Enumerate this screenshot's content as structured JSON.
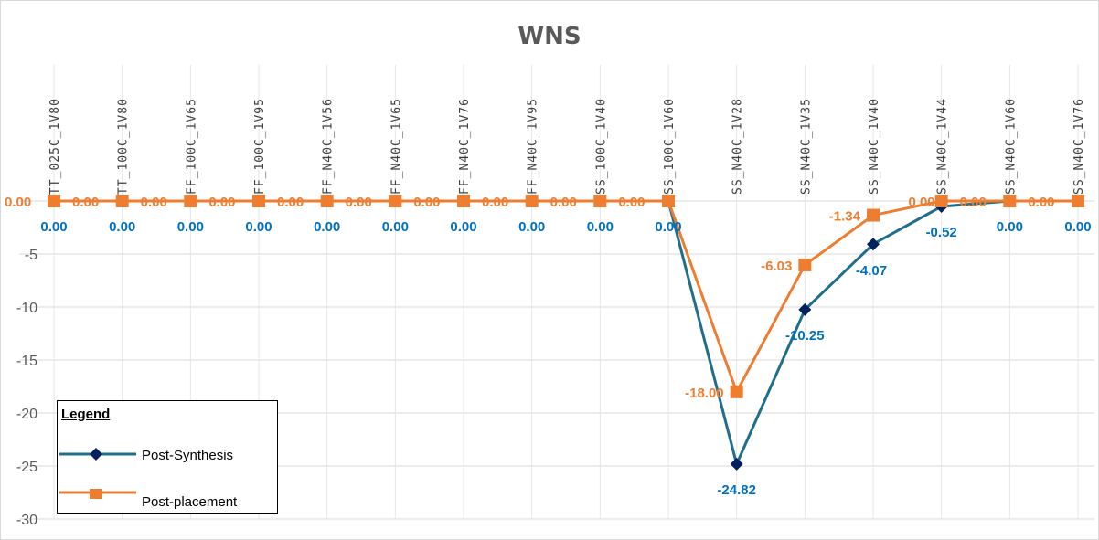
{
  "chart_data": {
    "type": "line",
    "title": "WNS",
    "categories": [
      "TT_025C_1V80",
      "TT_100C_1V80",
      "FF_100C_1V65",
      "FF_100C_1V95",
      "FF_N40C_1V56",
      "FF_N40C_1V65",
      "FF_N40C_1V76",
      "FF_N40C_1V95",
      "SS_100C_1V40",
      "SS_100C_1V60",
      "SS_N40C_1V28",
      "SS_N40C_1V35",
      "SS_N40C_1V40",
      "SS_N40C_1V44",
      "SS_N40C_1V60",
      "SS_N40C_1V76"
    ],
    "series": [
      {
        "name": "Post-Synthesis",
        "color": "#1f6f8b",
        "marker_color": "#002060",
        "marker": "diamond",
        "values": [
          0,
          0,
          0,
          0,
          0,
          0,
          0,
          0,
          0,
          0,
          -24.82,
          -10.25,
          -4.07,
          -0.52,
          0,
          0
        ],
        "labels": [
          "0.00",
          "0.00",
          "0.00",
          "0.00",
          "0.00",
          "0.00",
          "0.00",
          "0.00",
          "0.00",
          "0.00",
          "-24.82",
          "-10.25",
          "-4.07",
          "-0.52",
          "0.00",
          "0.00"
        ]
      },
      {
        "name": "Post-placement",
        "color": "#ed7d31",
        "marker_color": "#ed7d31",
        "marker": "square",
        "values": [
          0,
          0,
          0,
          0,
          0,
          0,
          0,
          0,
          0,
          0,
          -18.0,
          -6.03,
          -1.34,
          0,
          0,
          0
        ],
        "labels": [
          "0.00",
          "0.00",
          "0.00",
          "0.00",
          "0.00",
          "0.00",
          "0.00",
          "0.00",
          "0.00",
          "0.00",
          "-18.00",
          "-6.03",
          "-1.34",
          "0.00",
          "0.00",
          "0.00"
        ]
      }
    ],
    "yticks": [
      0,
      -5,
      -10,
      -15,
      -20,
      -25,
      -30
    ],
    "ytick_labels": [
      "0",
      "-5",
      "-10",
      "-15",
      "-20",
      "-25",
      "-30"
    ],
    "ylim": [
      -30,
      0
    ],
    "grid": true,
    "legend": {
      "title": "Legend",
      "placement": "bottom-left"
    },
    "xlabel": "",
    "ylabel": ""
  }
}
